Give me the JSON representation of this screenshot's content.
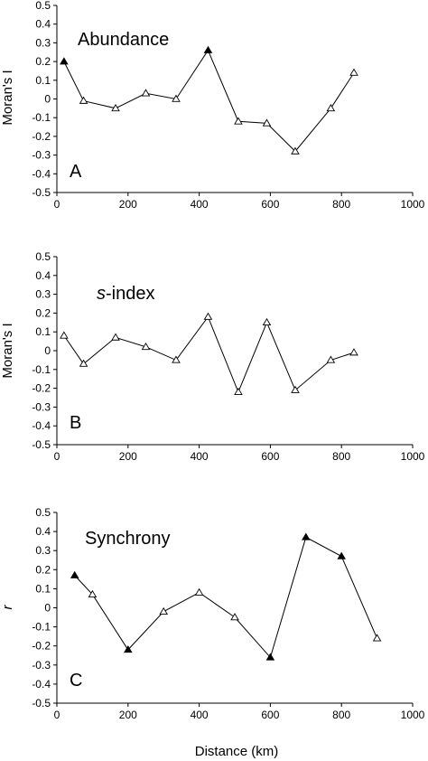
{
  "chart_data": [
    {
      "type": "line",
      "panel_label": "A",
      "title": "Abundance",
      "xlabel": "",
      "ylabel": "Moran's I",
      "xlim": [
        0,
        1000
      ],
      "ylim": [
        -0.5,
        0.5
      ],
      "xticks": [
        "0",
        "200",
        "400",
        "600",
        "800",
        "1000"
      ],
      "yticks": [
        "0.5",
        "0.4",
        "0.3",
        "0.2",
        "0.1",
        "0",
        "-0.1",
        "-0.2",
        "-0.3",
        "-0.4",
        "-0.5"
      ],
      "series": [
        {
          "x": [
            20,
            75,
            165,
            250,
            335,
            425,
            510,
            590,
            670,
            770,
            835
          ],
          "y": [
            0.2,
            -0.01,
            -0.05,
            0.03,
            0.0,
            0.26,
            -0.12,
            -0.13,
            -0.28,
            -0.05,
            0.14
          ],
          "filled": [
            true,
            false,
            false,
            false,
            false,
            true,
            false,
            false,
            false,
            false,
            false
          ]
        }
      ]
    },
    {
      "type": "line",
      "panel_label": "B",
      "title_prefix": "s",
      "title_rest": "-index",
      "xlabel": "",
      "ylabel": "Moran's I",
      "xlim": [
        0,
        1000
      ],
      "ylim": [
        -0.5,
        0.5
      ],
      "xticks": [
        "0",
        "200",
        "400",
        "600",
        "800",
        "1000"
      ],
      "yticks": [
        "0.5",
        "0.4",
        "0.3",
        "0.2",
        "0.1",
        "0",
        "-0.1",
        "-0.2",
        "-0.3",
        "-0.4",
        "-0.5"
      ],
      "series": [
        {
          "x": [
            20,
            75,
            165,
            250,
            335,
            425,
            510,
            590,
            670,
            770,
            835
          ],
          "y": [
            0.08,
            -0.07,
            0.07,
            0.02,
            -0.05,
            0.18,
            -0.22,
            0.15,
            -0.21,
            -0.05,
            -0.01
          ],
          "filled": [
            false,
            false,
            false,
            false,
            false,
            false,
            false,
            false,
            false,
            false,
            false
          ]
        }
      ]
    },
    {
      "type": "line",
      "panel_label": "C",
      "title": "Synchrony",
      "xlabel": "Distance (km)",
      "ylabel": "r",
      "xlim": [
        0,
        1000
      ],
      "ylim": [
        -0.5,
        0.5
      ],
      "xticks": [
        "0",
        "200",
        "400",
        "600",
        "800",
        "1000"
      ],
      "yticks": [
        "0.5",
        "0.4",
        "0.3",
        "0.2",
        "0.1",
        "0",
        "-0.1",
        "-0.2",
        "-0.3",
        "-0.4",
        "-0.5"
      ],
      "series": [
        {
          "x": [
            50,
            100,
            200,
            300,
            400,
            500,
            600,
            700,
            800,
            900
          ],
          "y": [
            0.17,
            0.07,
            -0.22,
            -0.02,
            0.08,
            -0.05,
            -0.26,
            0.37,
            0.27,
            -0.16
          ],
          "filled": [
            true,
            false,
            true,
            false,
            false,
            false,
            true,
            true,
            true,
            false
          ]
        }
      ]
    }
  ]
}
